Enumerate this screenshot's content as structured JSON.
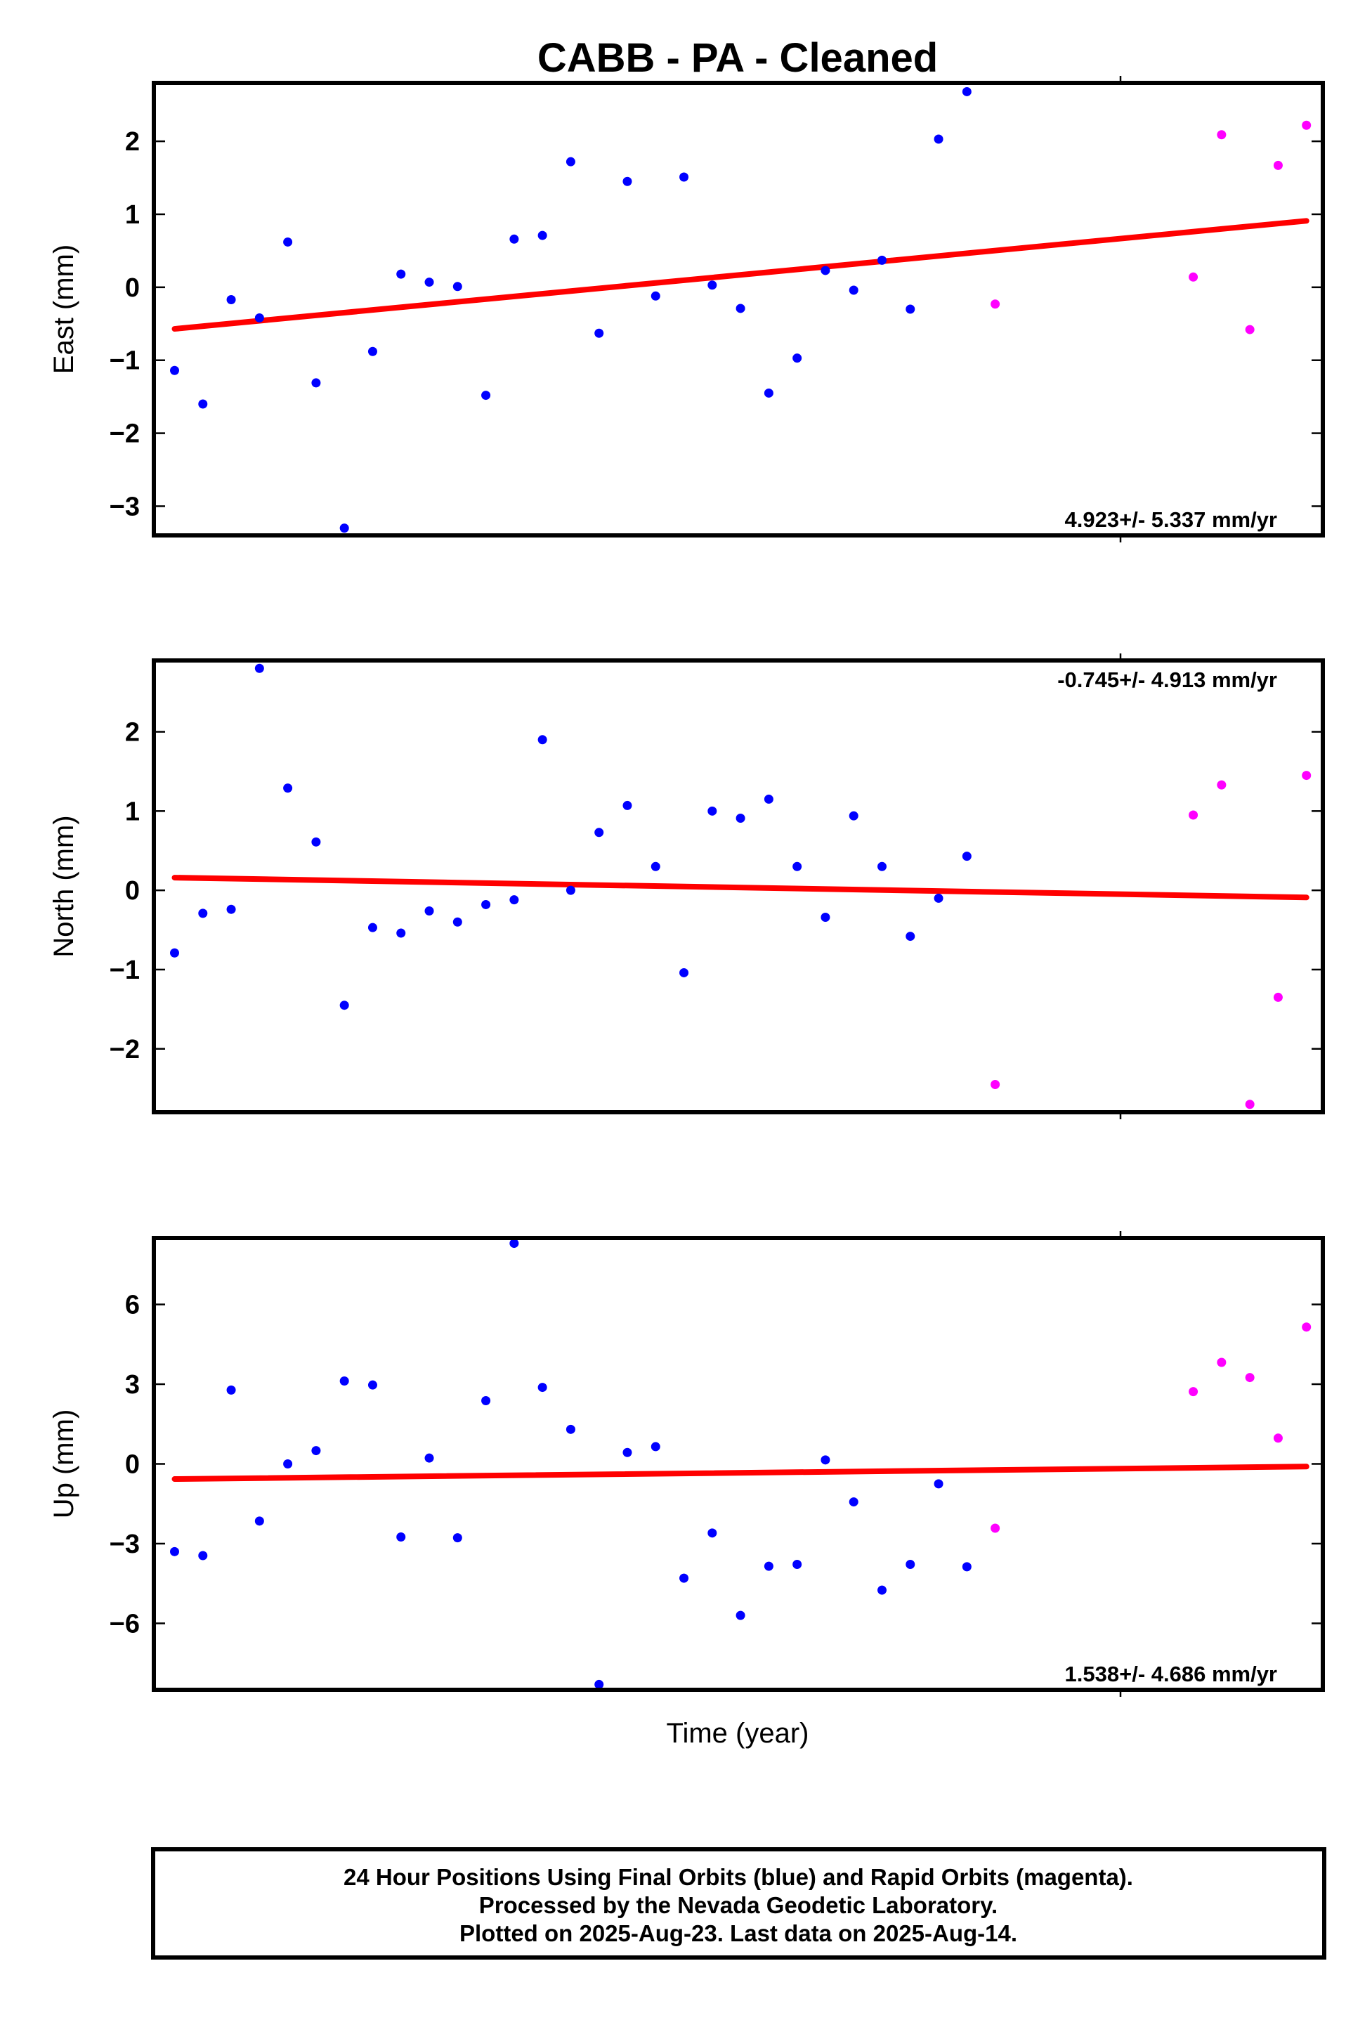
{
  "title": "CABB  - PA - Cleaned",
  "xlabel": "Time (year)",
  "colors": {
    "final": "#0000ff",
    "rapid": "#ff00ff",
    "trend": "#ff0000"
  },
  "footer": {
    "line1": "24 Hour Positions Using Final Orbits (blue) and Rapid Orbits (magenta).",
    "line2": "Processed by the Nevada Geodetic Laboratory.",
    "line3": "Plotted on 2025-Aug-23. Last data on 2025-Aug-14."
  },
  "chart_data": [
    {
      "type": "scatter",
      "name": "east",
      "ylabel": "East (mm)",
      "rate": "4.923+/- 5.337 mm/yr",
      "ylim": [
        -3.4,
        2.8
      ],
      "yticks": [
        -3,
        -2,
        -1,
        0,
        1,
        2
      ],
      "ytick_labels": [
        "−3",
        "−2",
        "−1",
        "0",
        "1",
        "2"
      ],
      "xlim": [
        0,
        41
      ],
      "final": [
        [
          1,
          -1.14
        ],
        [
          2,
          -1.6
        ],
        [
          3,
          -0.17
        ],
        [
          4,
          -0.42
        ],
        [
          5,
          0.62
        ],
        [
          6,
          -1.31
        ],
        [
          7,
          -3.3
        ],
        [
          8,
          -0.88
        ],
        [
          9,
          0.18
        ],
        [
          10,
          0.07
        ],
        [
          11,
          0.01
        ],
        [
          12,
          -1.48
        ],
        [
          13,
          0.66
        ],
        [
          14,
          0.71
        ],
        [
          15,
          1.72
        ],
        [
          16,
          -0.63
        ],
        [
          17,
          1.45
        ],
        [
          18,
          -0.12
        ],
        [
          19,
          1.51
        ],
        [
          20,
          0.03
        ],
        [
          21,
          -0.29
        ],
        [
          22,
          -1.45
        ],
        [
          23,
          -0.97
        ],
        [
          24,
          0.23
        ],
        [
          25,
          -0.04
        ],
        [
          26,
          0.37
        ],
        [
          27,
          -0.3
        ],
        [
          28,
          2.03
        ],
        [
          29,
          2.68
        ]
      ],
      "rapid": [
        [
          30,
          -0.23
        ],
        [
          37,
          0.14
        ],
        [
          38,
          2.09
        ],
        [
          39,
          -0.58
        ],
        [
          40,
          1.67
        ],
        [
          41,
          2.22
        ]
      ],
      "trend": [
        [
          1,
          -0.57
        ],
        [
          41,
          0.91
        ]
      ]
    },
    {
      "type": "scatter",
      "name": "north",
      "ylabel": "North (mm)",
      "rate": "-0.745+/- 4.913 mm/yr",
      "ylim": [
        -2.8,
        2.9
      ],
      "yticks": [
        -2,
        -1,
        0,
        1,
        2
      ],
      "ytick_labels": [
        "−2",
        "−1",
        "0",
        "1",
        "2"
      ],
      "xlim": [
        0,
        41
      ],
      "final": [
        [
          1,
          -0.79
        ],
        [
          2,
          -0.29
        ],
        [
          3,
          -0.24
        ],
        [
          4,
          2.8
        ],
        [
          5,
          1.29
        ],
        [
          6,
          0.61
        ],
        [
          7,
          -1.45
        ],
        [
          8,
          -0.47
        ],
        [
          9,
          -0.54
        ],
        [
          10,
          -0.26
        ],
        [
          11,
          -0.4
        ],
        [
          12,
          -0.18
        ],
        [
          13,
          -0.12
        ],
        [
          14,
          1.9
        ],
        [
          15,
          0.0
        ],
        [
          16,
          0.73
        ],
        [
          17,
          1.07
        ],
        [
          18,
          0.3
        ],
        [
          19,
          -1.04
        ],
        [
          20,
          1.0
        ],
        [
          21,
          0.91
        ],
        [
          22,
          1.15
        ],
        [
          23,
          0.3
        ],
        [
          24,
          -0.34
        ],
        [
          25,
          0.94
        ],
        [
          26,
          0.3
        ],
        [
          27,
          -0.58
        ],
        [
          28,
          -0.1
        ],
        [
          29,
          0.43
        ]
      ],
      "rapid": [
        [
          30,
          -2.45
        ],
        [
          37,
          0.95
        ],
        [
          38,
          1.33
        ],
        [
          39,
          -2.7
        ],
        [
          40,
          -1.35
        ],
        [
          41,
          1.45
        ]
      ],
      "trend": [
        [
          1,
          0.16
        ],
        [
          41,
          -0.09
        ]
      ]
    },
    {
      "type": "scatter",
      "name": "up",
      "ylabel": "Up (mm)",
      "rate": "1.538+/- 4.686 mm/yr",
      "ylim": [
        -8.5,
        8.5
      ],
      "yticks": [
        -6,
        -3,
        0,
        3,
        6
      ],
      "ytick_labels": [
        "−6",
        "−3",
        "0",
        "3",
        "6"
      ],
      "xlim": [
        0,
        41
      ],
      "final": [
        [
          1,
          -3.3
        ],
        [
          2,
          -3.45
        ],
        [
          3,
          2.78
        ],
        [
          4,
          -2.15
        ],
        [
          5,
          0.0
        ],
        [
          6,
          0.5
        ],
        [
          7,
          3.12
        ],
        [
          8,
          2.97
        ],
        [
          9,
          -2.75
        ],
        [
          10,
          0.22
        ],
        [
          11,
          -2.78
        ],
        [
          12,
          2.38
        ],
        [
          13,
          8.3
        ],
        [
          14,
          2.88
        ],
        [
          15,
          1.3
        ],
        [
          16,
          -8.3
        ],
        [
          17,
          0.43
        ],
        [
          18,
          0.65
        ],
        [
          19,
          -4.3
        ],
        [
          20,
          -2.6
        ],
        [
          21,
          -5.7
        ],
        [
          22,
          -3.85
        ],
        [
          23,
          -3.78
        ],
        [
          24,
          0.15
        ],
        [
          25,
          -1.43
        ],
        [
          26,
          -4.75
        ],
        [
          27,
          -3.78
        ],
        [
          28,
          -0.75
        ],
        [
          29,
          -3.87
        ]
      ],
      "rapid": [
        [
          30,
          -2.42
        ],
        [
          37,
          2.72
        ],
        [
          38,
          3.82
        ],
        [
          39,
          3.25
        ],
        [
          40,
          0.97
        ],
        [
          41,
          5.15
        ]
      ],
      "trend": [
        [
          1,
          -0.57
        ],
        [
          41,
          -0.1
        ]
      ]
    }
  ]
}
